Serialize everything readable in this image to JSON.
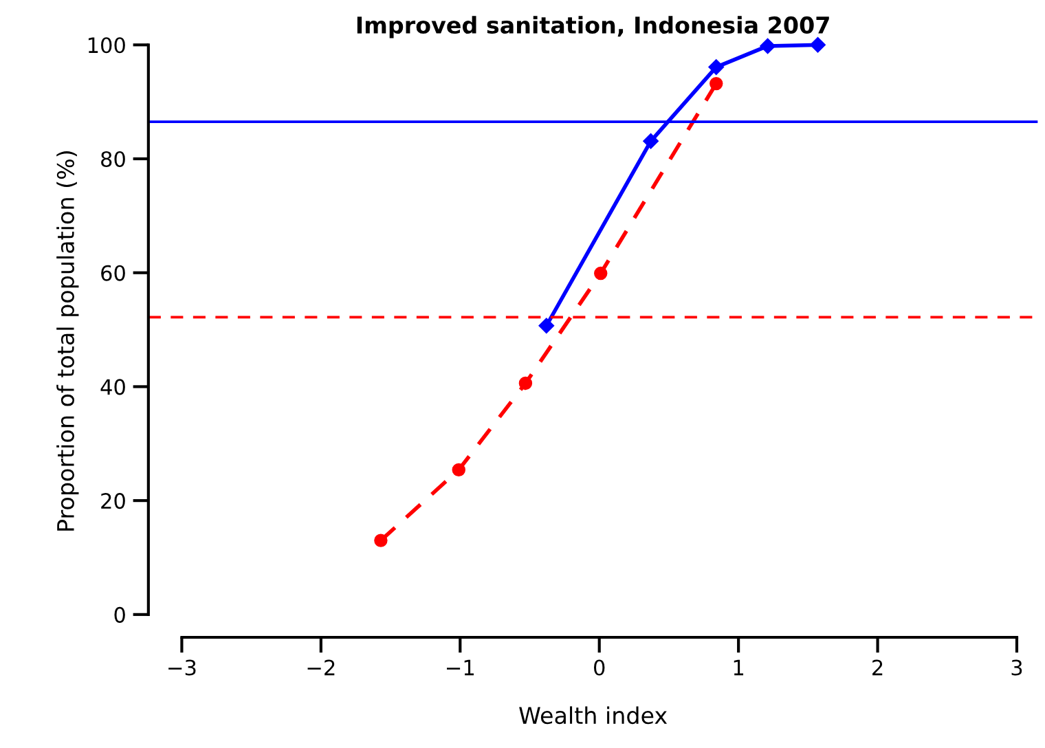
{
  "chart_data": {
    "type": "line",
    "title": "Improved sanitation, Indonesia 2007",
    "xlabel": "Wealth index",
    "ylabel": "Proportion of total population (%)",
    "series": [
      {
        "color": "#0000ff",
        "marker": "diamond",
        "line_style": "solid",
        "x": [
          -0.38,
          0.37,
          0.84,
          1.21,
          1.57
        ],
        "values": [
          50.7,
          83.1,
          96.1,
          99.8,
          100
        ]
      },
      {
        "color": "#ff0000",
        "marker": "circle",
        "line_style": "dashed",
        "x": [
          -1.57,
          -1.01,
          -0.53,
          0.01,
          0.84
        ],
        "values": [
          13.0,
          25.4,
          40.6,
          59.9,
          93.2
        ]
      }
    ],
    "ref_lines": [
      {
        "axis": "y",
        "value": 86.5,
        "color": "#0000ff",
        "line_style": "solid"
      },
      {
        "axis": "y",
        "value": 52.2,
        "color": "#ff0000",
        "line_style": "dashed"
      }
    ],
    "xlim": [
      -3.24,
      3.15
    ],
    "ylim": [
      -4,
      100
    ],
    "xticks": [
      -3,
      -2,
      -1,
      0,
      1,
      2,
      3
    ],
    "yticks": [
      0,
      20,
      40,
      60,
      80,
      100
    ],
    "grid": false,
    "legend": false
  }
}
